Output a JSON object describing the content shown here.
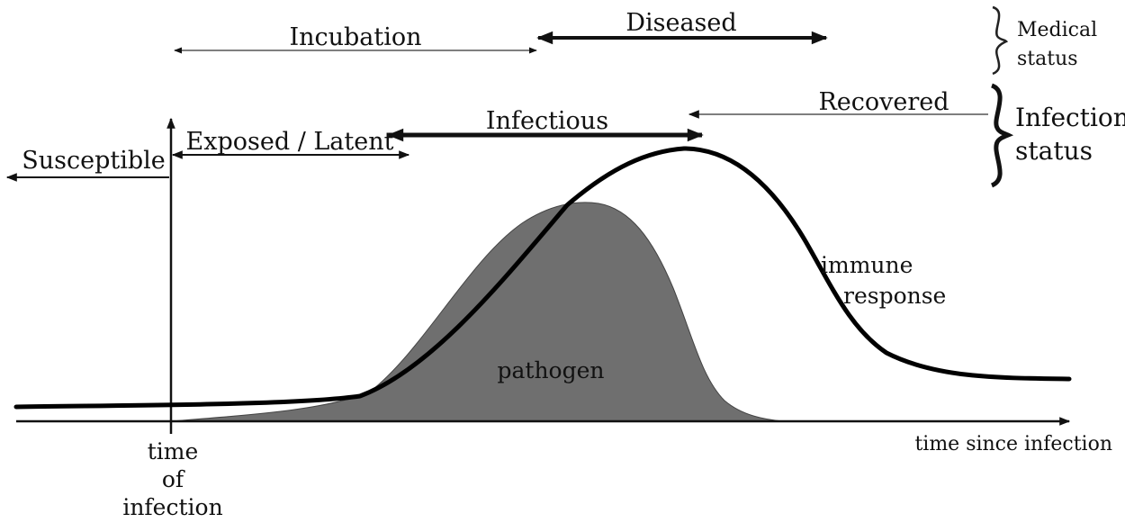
{
  "medical_status": {
    "incubation": "Incubation",
    "diseased": "Diseased",
    "bracket_label_line1": "Medical",
    "bracket_label_line2": "status"
  },
  "infection_status": {
    "susceptible": "Susceptible",
    "exposed_latent": "Exposed / Latent",
    "infectious": "Infectious",
    "recovered": "Recovered",
    "bracket_label_line1": "Infection",
    "bracket_label_line2": "status"
  },
  "curves": {
    "immune_line1": "immune",
    "immune_line2": "response",
    "pathogen": "pathogen"
  },
  "axis": {
    "x_label": "time since infection",
    "origin_line1": "time",
    "origin_line2": "of",
    "origin_line3": "infection"
  },
  "colors": {
    "pathogen_fill": "#6f6f6f",
    "curve": "#000000"
  }
}
